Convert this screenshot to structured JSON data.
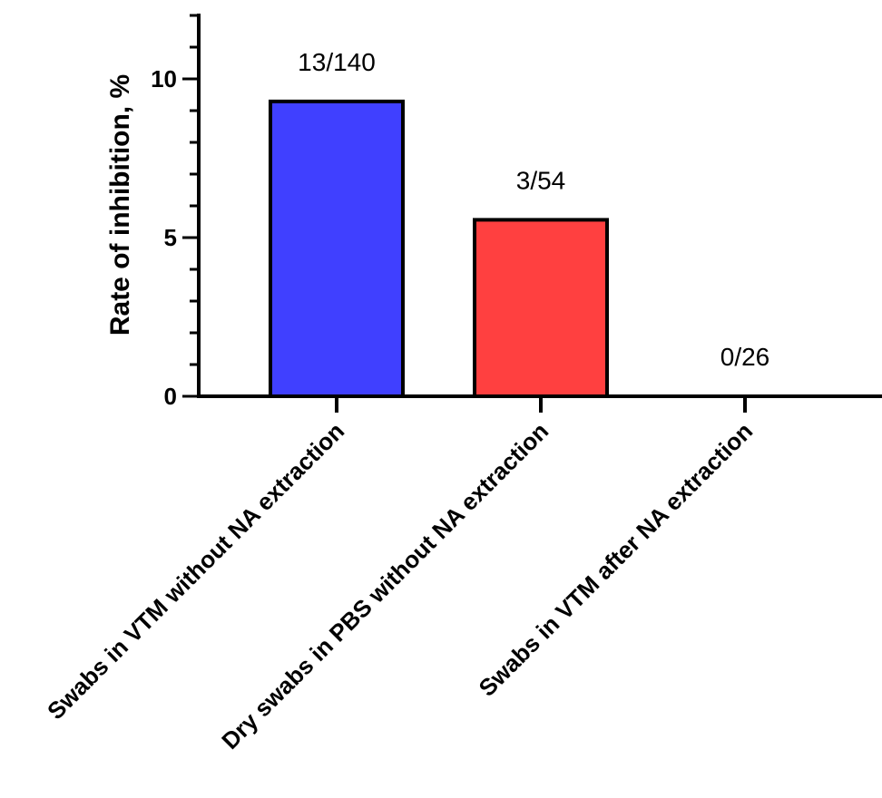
{
  "chart_data": {
    "type": "bar",
    "categories": [
      "Swabs in VTM without NA extraction",
      "Dry swabs in PBS without NA extraction",
      "Swabs in VTM after NA extraction"
    ],
    "values": [
      9.29,
      5.56,
      0
    ],
    "data_labels": [
      "13/140",
      "3/54",
      "0/26"
    ],
    "colors": [
      "#4040ff",
      "#ff4040",
      "#ffffff"
    ],
    "title": "",
    "xlabel": "",
    "ylabel": "Rate of inhibition, %",
    "ylim": [
      0,
      12
    ],
    "yticks": [
      0,
      5,
      10
    ],
    "ytick_labels": [
      "0",
      "5",
      "10"
    ],
    "minor_tick_step": 1,
    "grid": false,
    "legend": "none"
  }
}
